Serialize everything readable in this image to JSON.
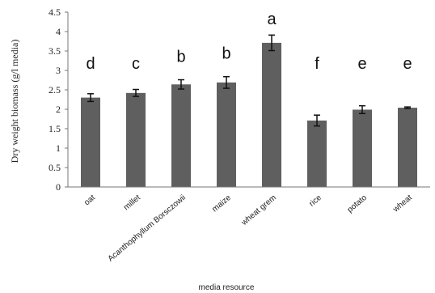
{
  "chart_data": {
    "type": "bar",
    "categories": [
      "oat",
      "millet",
      "Acanthophyllum Borsczowii",
      "maize",
      "wheat grem",
      "rice",
      "potato",
      "wheat"
    ],
    "values": [
      2.3,
      2.42,
      2.64,
      2.69,
      3.71,
      1.71,
      1.99,
      2.04
    ],
    "errors": [
      0.1,
      0.09,
      0.12,
      0.15,
      0.2,
      0.14,
      0.1,
      0.02
    ],
    "significance": [
      "d",
      "c",
      "b",
      "b",
      "a",
      "f",
      "e",
      "e"
    ],
    "xlabel": "media resource",
    "ylabel": "Dry weight biomass (g/l media)",
    "ylim": [
      0,
      4.5
    ],
    "yticks": [
      "0",
      "0.5",
      "1",
      "1.5",
      "2",
      "2.5",
      "3",
      "3.5",
      "4",
      "4.5"
    ],
    "grid": false,
    "bar_color": "#5f5f5f"
  }
}
